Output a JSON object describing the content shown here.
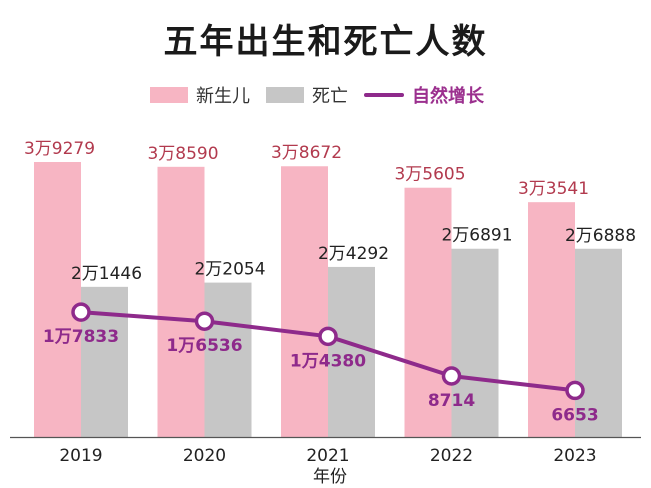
{
  "title": "五年出生和死亡人数",
  "legend": {
    "births": "新生儿",
    "deaths": "死亡",
    "natural": "自然增长"
  },
  "colors": {
    "births": "#f7b5c3",
    "deaths": "#c6c6c6",
    "natural": "#8e2a8b",
    "births_label": "#b23a4e",
    "natural_label": "#8e2a8b"
  },
  "chart_data": {
    "type": "bar",
    "title": "五年出生和死亡人数",
    "xlabel": "年份",
    "ylabel": "",
    "categories": [
      "2019",
      "2020",
      "2021",
      "2022",
      "2023"
    ],
    "ylim": [
      0,
      40000
    ],
    "grid": false,
    "legend_position": "top",
    "series": [
      {
        "name": "新生儿",
        "type": "bar",
        "values": [
          39279,
          38590,
          38672,
          35605,
          33541
        ],
        "labels": [
          "3万9279",
          "3万8590",
          "3万8672",
          "3万5605",
          "3万3541"
        ]
      },
      {
        "name": "死亡",
        "type": "bar",
        "values": [
          21446,
          22054,
          24292,
          26891,
          26888
        ],
        "labels": [
          "2万1446",
          "2万2054",
          "2万4292",
          "2万6891",
          "2万6888"
        ]
      },
      {
        "name": "自然增长",
        "type": "line",
        "values": [
          17833,
          16536,
          14380,
          8714,
          6653
        ],
        "labels": [
          "1万7833",
          "1万6536",
          "1万4380",
          "8714",
          "6653"
        ]
      }
    ]
  }
}
